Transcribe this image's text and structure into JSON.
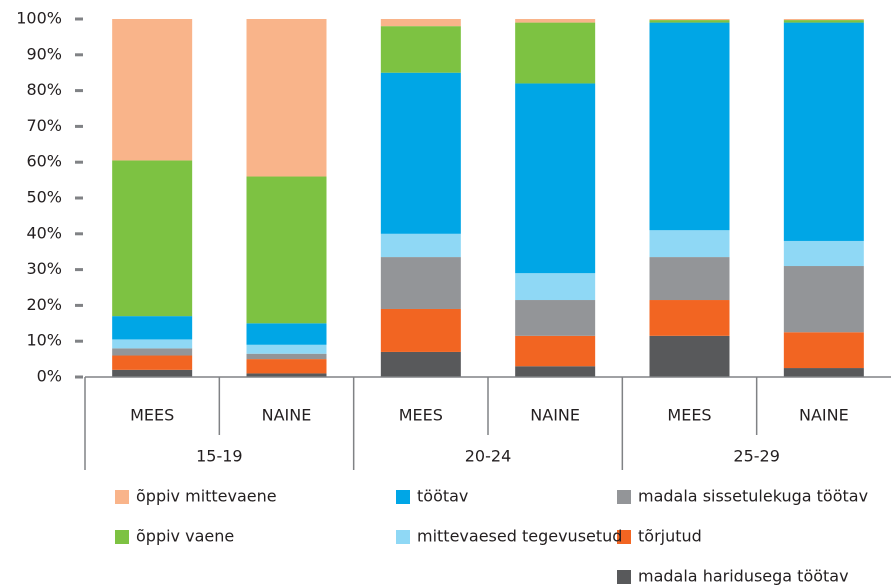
{
  "chart_data": {
    "type": "stacked_bar",
    "categories": [
      "MEES",
      "NAINE",
      "MEES",
      "NAINE",
      "MEES",
      "NAINE"
    ],
    "groups": [
      "15-19",
      "20-24",
      "25-29"
    ],
    "ylim": [
      0,
      100
    ],
    "yticks": [
      {
        "value": 0,
        "label": "0%"
      },
      {
        "value": 10,
        "label": "10%"
      },
      {
        "value": 20,
        "label": "20%"
      },
      {
        "value": 30,
        "label": "30%"
      },
      {
        "value": 40,
        "label": "40%"
      },
      {
        "value": 50,
        "label": "50%"
      },
      {
        "value": 60,
        "label": "60%"
      },
      {
        "value": 70,
        "label": "70%"
      },
      {
        "value": 80,
        "label": "80%"
      },
      {
        "value": 90,
        "label": "90%"
      },
      {
        "value": 100,
        "label": "100%"
      }
    ],
    "series": [
      {
        "name": "madala haridusega töötav",
        "color": "#58595b",
        "values": [
          2,
          1,
          7,
          3,
          11.5,
          2.5
        ]
      },
      {
        "name": "tõrjutud",
        "color": "#f26522",
        "values": [
          4,
          4,
          12,
          8.5,
          10,
          10
        ]
      },
      {
        "name": "madala sissetulekuga töötav",
        "color": "#939598",
        "values": [
          2,
          1.5,
          14.5,
          10,
          12,
          18.5
        ]
      },
      {
        "name": "mittevaesed tegevusetud",
        "color": "#8fd8f5",
        "values": [
          2.5,
          2.5,
          6.5,
          7.5,
          7.5,
          7
        ]
      },
      {
        "name": "töötav",
        "color": "#00a6e6",
        "values": [
          6.5,
          6,
          45,
          53,
          58,
          61
        ]
      },
      {
        "name": "õppiv vaene",
        "color": "#7dc242",
        "values": [
          43.5,
          41,
          13,
          17,
          0.7,
          0.7
        ]
      },
      {
        "name": "õppiv mittevaene",
        "color": "#f9b48a",
        "values": [
          39.5,
          44,
          2,
          1,
          0.3,
          0.3
        ]
      }
    ]
  }
}
